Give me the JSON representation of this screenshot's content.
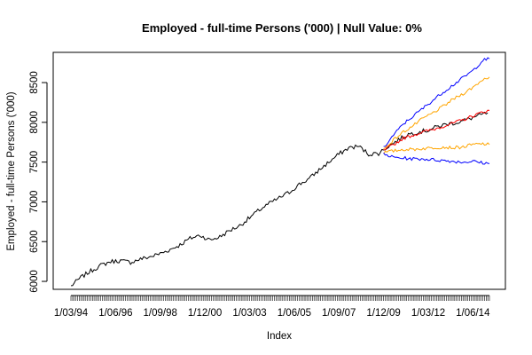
{
  "chart_data": {
    "type": "line",
    "title": "Employed - full-time Persons ('000) | Null Value: 0%",
    "xlabel": "Index",
    "ylabel": "Employed - full-time Persons ('000)",
    "ylim": [
      5900,
      8880
    ],
    "yticks": [
      6000,
      6500,
      7000,
      7500,
      8000,
      8500
    ],
    "xlim": [
      "1994-03",
      "2015-04"
    ],
    "xtick_labels": [
      "1/03/94",
      "1/06/96",
      "1/09/98",
      "1/12/00",
      "1/03/03",
      "1/06/05",
      "1/09/07",
      "1/12/09",
      "1/03/12",
      "1/06/14"
    ],
    "xtick_dates": [
      "1994-03",
      "1996-06",
      "1998-09",
      "2000-12",
      "2003-03",
      "2005-06",
      "2007-09",
      "2009-12",
      "2012-03",
      "2014-06"
    ],
    "frequency": "monthly",
    "grid": false,
    "colors": {
      "actual": "#000000",
      "fitted": "#ff0000",
      "bound_80": "#ffa500",
      "bound_95": "#0000ff"
    },
    "series": [
      {
        "color_key": "actual",
        "points": [
          [
            "1994-03",
            5940
          ],
          [
            "1994-09",
            6050
          ],
          [
            "1995-03",
            6130
          ],
          [
            "1995-09",
            6200
          ],
          [
            "1996-03",
            6250
          ],
          [
            "1996-09",
            6260
          ],
          [
            "1997-03",
            6240
          ],
          [
            "1997-09",
            6280
          ],
          [
            "1998-03",
            6310
          ],
          [
            "1998-09",
            6350
          ],
          [
            "1999-03",
            6400
          ],
          [
            "1999-09",
            6460
          ],
          [
            "2000-03",
            6540
          ],
          [
            "2000-09",
            6580
          ],
          [
            "2001-03",
            6520
          ],
          [
            "2001-09",
            6560
          ],
          [
            "2002-03",
            6640
          ],
          [
            "2002-09",
            6700
          ],
          [
            "2003-03",
            6800
          ],
          [
            "2003-09",
            6900
          ],
          [
            "2004-03",
            6980
          ],
          [
            "2004-09",
            7050
          ],
          [
            "2005-03",
            7120
          ],
          [
            "2005-09",
            7220
          ],
          [
            "2006-03",
            7290
          ],
          [
            "2006-09",
            7400
          ],
          [
            "2007-03",
            7500
          ],
          [
            "2007-09",
            7600
          ],
          [
            "2008-03",
            7680
          ],
          [
            "2008-09",
            7700
          ],
          [
            "2009-03",
            7600
          ],
          [
            "2009-09",
            7610
          ],
          [
            "2010-03",
            7700
          ],
          [
            "2010-09",
            7780
          ],
          [
            "2011-03",
            7850
          ],
          [
            "2011-09",
            7880
          ],
          [
            "2012-03",
            7900
          ],
          [
            "2012-09",
            7950
          ],
          [
            "2013-03",
            7980
          ],
          [
            "2013-09",
            8000
          ],
          [
            "2014-03",
            8040
          ],
          [
            "2014-09",
            8080
          ],
          [
            "2015-03",
            8120
          ]
        ]
      },
      {
        "color_key": "fitted",
        "points": [
          [
            "2009-12",
            7640
          ],
          [
            "2010-06",
            7720
          ],
          [
            "2010-12",
            7800
          ],
          [
            "2011-06",
            7840
          ],
          [
            "2011-12",
            7880
          ],
          [
            "2012-06",
            7910
          ],
          [
            "2012-12",
            7950
          ],
          [
            "2013-06",
            7990
          ],
          [
            "2013-12",
            8030
          ],
          [
            "2014-06",
            8080
          ],
          [
            "2014-12",
            8130
          ],
          [
            "2015-04",
            8150
          ]
        ]
      },
      {
        "color_key": "bound_80",
        "points": [
          [
            "2009-12",
            7660
          ],
          [
            "2010-06",
            7780
          ],
          [
            "2010-12",
            7880
          ],
          [
            "2011-06",
            7960
          ],
          [
            "2011-12",
            8050
          ],
          [
            "2012-06",
            8120
          ],
          [
            "2012-12",
            8200
          ],
          [
            "2013-06",
            8290
          ],
          [
            "2013-12",
            8360
          ],
          [
            "2014-06",
            8440
          ],
          [
            "2014-12",
            8540
          ],
          [
            "2015-04",
            8570
          ]
        ]
      },
      {
        "color_key": "bound_80",
        "points": [
          [
            "2009-12",
            7620
          ],
          [
            "2010-06",
            7640
          ],
          [
            "2010-12",
            7660
          ],
          [
            "2011-06",
            7660
          ],
          [
            "2011-12",
            7670
          ],
          [
            "2012-06",
            7680
          ],
          [
            "2012-12",
            7690
          ],
          [
            "2013-06",
            7680
          ],
          [
            "2013-12",
            7690
          ],
          [
            "2014-06",
            7720
          ],
          [
            "2014-12",
            7730
          ],
          [
            "2015-04",
            7720
          ]
        ]
      },
      {
        "color_key": "bound_95",
        "points": [
          [
            "2009-12",
            7680
          ],
          [
            "2010-06",
            7840
          ],
          [
            "2010-12",
            7980
          ],
          [
            "2011-06",
            8080
          ],
          [
            "2011-12",
            8180
          ],
          [
            "2012-06",
            8280
          ],
          [
            "2012-12",
            8380
          ],
          [
            "2013-06",
            8470
          ],
          [
            "2013-12",
            8560
          ],
          [
            "2014-06",
            8650
          ],
          [
            "2014-12",
            8780
          ],
          [
            "2015-04",
            8800
          ]
        ]
      },
      {
        "color_key": "bound_95",
        "points": [
          [
            "2009-12",
            7600
          ],
          [
            "2010-06",
            7560
          ],
          [
            "2010-12",
            7550
          ],
          [
            "2011-06",
            7540
          ],
          [
            "2011-12",
            7540
          ],
          [
            "2012-06",
            7530
          ],
          [
            "2012-12",
            7520
          ],
          [
            "2013-06",
            7510
          ],
          [
            "2013-12",
            7500
          ],
          [
            "2014-06",
            7510
          ],
          [
            "2014-12",
            7490
          ],
          [
            "2015-04",
            7480
          ]
        ]
      }
    ]
  }
}
